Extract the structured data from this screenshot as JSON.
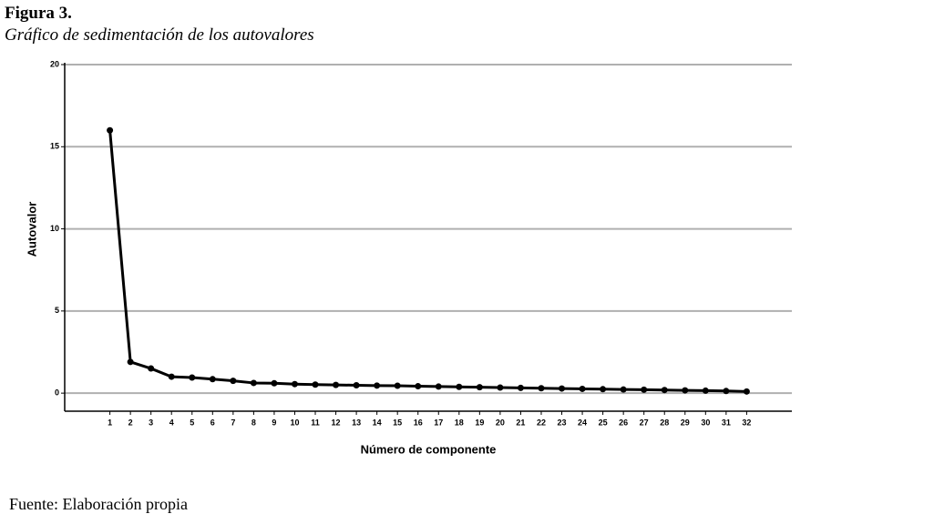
{
  "chart_data": {
    "type": "line",
    "title": "Figura 3.",
    "subtitle": "Gráfico de sedimentación de los autovalores",
    "x_label": "Número de componente",
    "y_label": "Autovalor",
    "x": [
      1,
      2,
      3,
      4,
      5,
      6,
      7,
      8,
      9,
      10,
      11,
      12,
      13,
      14,
      15,
      16,
      17,
      18,
      19,
      20,
      21,
      22,
      23,
      24,
      25,
      26,
      27,
      28,
      29,
      30,
      31,
      32
    ],
    "values": [
      16.0,
      1.9,
      1.5,
      1.0,
      0.95,
      0.85,
      0.75,
      0.62,
      0.6,
      0.55,
      0.52,
      0.5,
      0.48,
      0.46,
      0.45,
      0.42,
      0.4,
      0.38,
      0.36,
      0.34,
      0.32,
      0.3,
      0.28,
      0.26,
      0.24,
      0.22,
      0.21,
      0.19,
      0.17,
      0.15,
      0.13,
      0.1
    ],
    "color": "#000000",
    "xlim": [
      -1.2,
      34.2
    ],
    "xticks": [
      1,
      2,
      3,
      4,
      5,
      6,
      7,
      8,
      9,
      10,
      11,
      12,
      13,
      14,
      15,
      16,
      17,
      18,
      19,
      20,
      21,
      22,
      23,
      24,
      25,
      26,
      27,
      28,
      29,
      30,
      31,
      32
    ],
    "ylim": [
      -1.1,
      20
    ],
    "yticks": [
      0,
      5,
      10,
      15,
      20
    ],
    "grid": true
  },
  "footer": "Fuente: Elaboración propia"
}
